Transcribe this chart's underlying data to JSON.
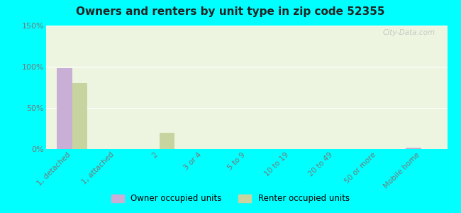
{
  "title": "Owners and renters by unit type in zip code 52355",
  "categories": [
    "1, detached",
    "1, attached",
    "2",
    "3 or 4",
    "5 to 9",
    "10 to 19",
    "20 to 49",
    "50 or more",
    "Mobile home"
  ],
  "owner_values": [
    98,
    0,
    0,
    0,
    0,
    0,
    0,
    0,
    2
  ],
  "renter_values": [
    80,
    0,
    20,
    0,
    0,
    0,
    0,
    0,
    0
  ],
  "owner_color": "#c9aed6",
  "renter_color": "#c8d4a0",
  "background_plot": "#edf5e0",
  "background_outer": "#00ffff",
  "ylim": [
    0,
    150
  ],
  "yticks": [
    0,
    50,
    100,
    150
  ],
  "ytick_labels": [
    "0%",
    "50%",
    "100%",
    "150%"
  ],
  "bar_width": 0.35,
  "legend_owner": "Owner occupied units",
  "legend_renter": "Renter occupied units",
  "watermark": "City-Data.com"
}
